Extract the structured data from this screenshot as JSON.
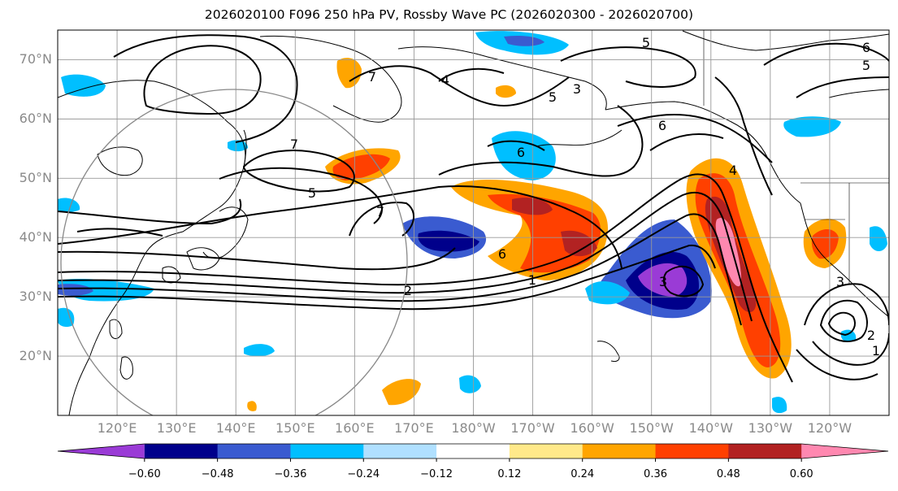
{
  "title": "2026020100 F096 250 hPa PV, Rossby Wave PC (2026020300 - 2026020700)",
  "map": {
    "lon_range_deg_east": [
      110,
      250
    ],
    "lat_range": [
      10,
      75
    ],
    "lat_labels": [
      "70°N",
      "60°N",
      "50°N",
      "40°N",
      "30°N",
      "20°N"
    ],
    "lat_values": [
      70,
      60,
      50,
      40,
      30,
      20
    ],
    "lon_labels": [
      "120°E",
      "130°E",
      "140°E",
      "150°E",
      "160°E",
      "170°E",
      "180°W",
      "170°W",
      "160°W",
      "150°W",
      "140°W",
      "130°W",
      "120°W"
    ],
    "lon_values": [
      120,
      130,
      140,
      150,
      160,
      170,
      180,
      190,
      200,
      210,
      220,
      230,
      240
    ],
    "grid": true,
    "contour_labels": [
      "7",
      "5",
      "7",
      "6",
      "2",
      "1",
      "3",
      "6",
      "4",
      "6",
      "5",
      "5",
      "7",
      "3",
      "2",
      "1",
      "5",
      "6",
      "4",
      "3"
    ]
  },
  "colorbar": {
    "ticks": [
      "−0.60",
      "−0.48",
      "−0.36",
      "−0.24",
      "−0.12",
      "0.12",
      "0.24",
      "0.36",
      "0.48",
      "0.60"
    ],
    "colors": [
      "#9a3bd6",
      "#00008b",
      "#3a5bd0",
      "#00bfff",
      "#b0e0ff",
      "#ffffff",
      "#ffe98a",
      "#ffa500",
      "#ff4000",
      "#b22222",
      "#ff88b0"
    ],
    "extend": "both"
  },
  "colors": {
    "land": "#000000",
    "grid": "#999999",
    "contour": "#000000"
  }
}
